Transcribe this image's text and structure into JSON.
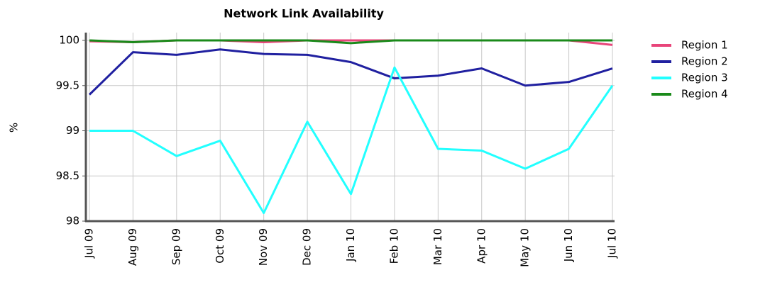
{
  "chart_data": {
    "type": "line",
    "title": "Network Link Availability",
    "y_label": "%",
    "categories": [
      "Jul 09",
      "Aug 09",
      "Sep 09",
      "Oct 09",
      "Nov 09",
      "Dec 09",
      "Jan 10",
      "Feb 10",
      "Mar 10",
      "Apr 10",
      "May 10",
      "Jun 10",
      "Jul 10"
    ],
    "series": [
      {
        "name": "Region 1",
        "color": "#e8457a",
        "values": [
          99.99,
          99.98,
          100,
          100,
          99.98,
          100,
          100,
          100,
          100,
          100,
          100,
          100,
          99.95
        ]
      },
      {
        "name": "Region 2",
        "color": "#2020a0",
        "values": [
          99.4,
          99.87,
          99.84,
          99.9,
          99.85,
          99.84,
          99.76,
          99.58,
          99.61,
          99.69,
          99.5,
          99.54,
          99.69
        ]
      },
      {
        "name": "Region 3",
        "color": "#22ffff",
        "values": [
          99.0,
          99.0,
          98.72,
          98.89,
          98.09,
          99.1,
          98.3,
          99.7,
          98.8,
          98.78,
          98.58,
          98.8,
          99.5
        ]
      },
      {
        "name": "Region 4",
        "color": "#1a8a1a",
        "values": [
          100,
          99.98,
          100,
          100,
          100,
          100,
          99.97,
          100,
          100,
          100,
          100,
          100,
          100
        ]
      }
    ],
    "ylim": [
      98,
      100
    ],
    "yticks": [
      98,
      98.5,
      99,
      99.5,
      100
    ],
    "grid": true,
    "legend": "right"
  }
}
